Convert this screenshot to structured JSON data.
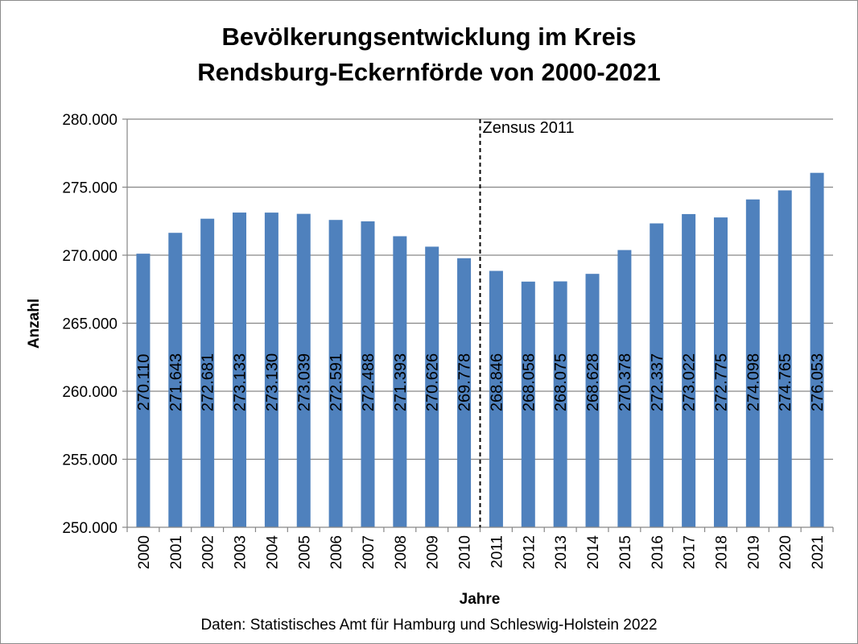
{
  "chart_data": {
    "type": "bar",
    "title": [
      "Bevölkerungsentwicklung im Kreis",
      "Rendsburg-Eckernförde von 2000-2021"
    ],
    "xlabel": "Jahre",
    "ylabel": "Anzahl",
    "source": "Daten: Statistisches Amt für Hamburg und Schleswig-Holstein 2022",
    "ylim": [
      250000,
      280000
    ],
    "yticks": [
      250000,
      255000,
      260000,
      265000,
      270000,
      275000,
      280000
    ],
    "ytick_labels": [
      "250.000",
      "255.000",
      "260.000",
      "265.000",
      "270.000",
      "275.000",
      "280.000"
    ],
    "grid": "horizontal",
    "legend": "none",
    "bar_color": "#4f81bd",
    "categories": [
      "2000",
      "2001",
      "2002",
      "2003",
      "2004",
      "2005",
      "2006",
      "2007",
      "2008",
      "2009",
      "2010",
      "2011",
      "2012",
      "2013",
      "2014",
      "2015",
      "2016",
      "2017",
      "2018",
      "2019",
      "2020",
      "2021"
    ],
    "values": [
      270110,
      271643,
      272681,
      273133,
      273130,
      273039,
      272591,
      272488,
      271393,
      270626,
      269778,
      268846,
      268058,
      268075,
      268628,
      270378,
      272337,
      273022,
      272775,
      274098,
      274765,
      276053
    ],
    "value_labels": [
      "270.110",
      "271.643",
      "272.681",
      "273.133",
      "273.130",
      "273.039",
      "272.591",
      "272.488",
      "271.393",
      "270.626",
      "269.778",
      "268.846",
      "268.058",
      "268.075",
      "268.628",
      "270.378",
      "272.337",
      "273.022",
      "272.775",
      "274.098",
      "274.765",
      "276.053"
    ],
    "annotations": [
      {
        "text": "Zensus 2011",
        "between": [
          "2010",
          "2011"
        ],
        "style": "dashed-vertical-line"
      }
    ]
  }
}
